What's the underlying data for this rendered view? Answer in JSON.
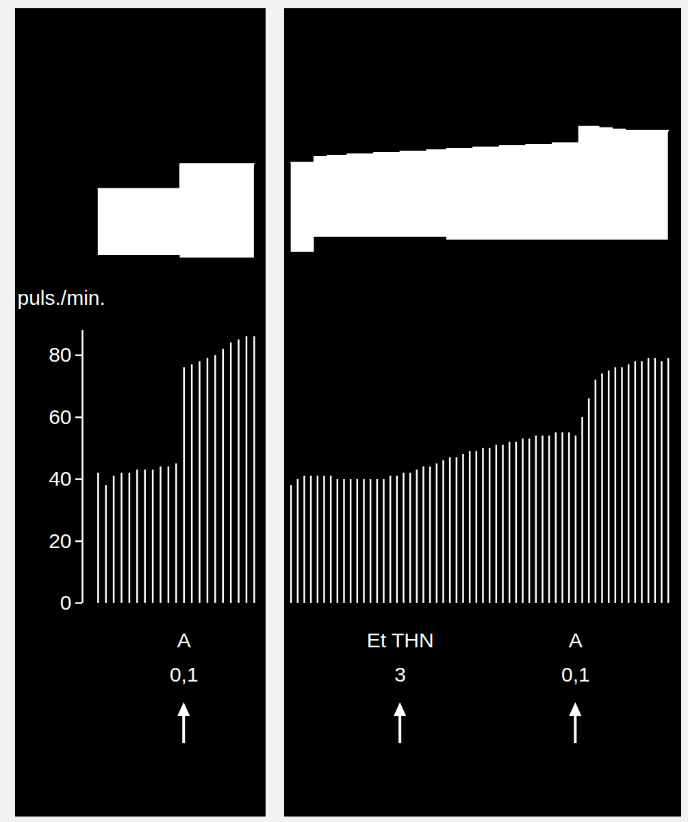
{
  "chart_data": [
    {
      "type": "area",
      "color": "white",
      "tick_labels": false,
      "ylim": [
        0,
        105
      ],
      "x": [
        0,
        1,
        2,
        3,
        4,
        5,
        6,
        7,
        8,
        9,
        10,
        11,
        12,
        13,
        14,
        15,
        16,
        17,
        18,
        19,
        20
      ],
      "upper": [
        53,
        53,
        53,
        53,
        53,
        53,
        53,
        53,
        53,
        53,
        53,
        71,
        71,
        71,
        71,
        71,
        71,
        71,
        71,
        71,
        71
      ],
      "lower": [
        5,
        5,
        5,
        5,
        5,
        5,
        5,
        5,
        5,
        5,
        5,
        3,
        3,
        3,
        3,
        3,
        3,
        3,
        3,
        3,
        3
      ]
    },
    {
      "type": "bar",
      "color": "white",
      "tick_labels": "y",
      "y_label": "puls./min.",
      "ylim": [
        0,
        88
      ],
      "yticks": [
        0,
        20,
        40,
        60,
        80
      ],
      "x": [
        0,
        1,
        2,
        3,
        4,
        5,
        6,
        7,
        8,
        9,
        10,
        11,
        12,
        13,
        14,
        15,
        16,
        17,
        18,
        19,
        20
      ],
      "values": [
        42,
        38,
        41,
        42,
        42,
        43,
        43,
        43,
        44,
        44,
        45,
        76,
        77,
        78,
        79,
        80,
        82,
        84,
        85,
        86,
        86
      ],
      "annotations": [
        {
          "x": 11,
          "text": [
            "A",
            "0,1"
          ]
        }
      ]
    },
    {
      "type": "area",
      "color": "white",
      "tick_labels": false,
      "ylim": [
        0,
        105
      ],
      "x": [
        0,
        1,
        2,
        3,
        4,
        5,
        6,
        7,
        8,
        9,
        10,
        11,
        12,
        13,
        14,
        15,
        16,
        17,
        18,
        19,
        20,
        21,
        22,
        23,
        24,
        25,
        26,
        27,
        28,
        29,
        30,
        31,
        32,
        33,
        34,
        35,
        36,
        37,
        38,
        39,
        40,
        41,
        42,
        43,
        44,
        45,
        46,
        47,
        48,
        49,
        50,
        51,
        52,
        53,
        54,
        55,
        56,
        57
      ],
      "upper": [
        72,
        72,
        72,
        72,
        76,
        76,
        77,
        77,
        77,
        78,
        78,
        78,
        78,
        79,
        79,
        79,
        79,
        80,
        80,
        80,
        80,
        81,
        81,
        81,
        82,
        82,
        82,
        82,
        83,
        83,
        83,
        83,
        84,
        84,
        84,
        84,
        85,
        85,
        85,
        85,
        86,
        86,
        86,
        86,
        98,
        98,
        98,
        97,
        97,
        96,
        96,
        95,
        95,
        95,
        95,
        95,
        95,
        95
      ],
      "lower": [
        7,
        7,
        7,
        7,
        18,
        18,
        18,
        18,
        18,
        18,
        18,
        18,
        18,
        18,
        18,
        18,
        18,
        18,
        18,
        18,
        18,
        18,
        18,
        18,
        16,
        16,
        16,
        16,
        16,
        16,
        16,
        16,
        16,
        16,
        16,
        16,
        16,
        16,
        16,
        16,
        16,
        16,
        16,
        16,
        16,
        16,
        16,
        16,
        16,
        16,
        16,
        16,
        16,
        16,
        16,
        16,
        16,
        16
      ]
    },
    {
      "type": "bar",
      "color": "white",
      "tick_labels": false,
      "ylim": [
        0,
        88
      ],
      "yticks": [
        0,
        20,
        40,
        60,
        80
      ],
      "x": [
        0,
        1,
        2,
        3,
        4,
        5,
        6,
        7,
        8,
        9,
        10,
        11,
        12,
        13,
        14,
        15,
        16,
        17,
        18,
        19,
        20,
        21,
        22,
        23,
        24,
        25,
        26,
        27,
        28,
        29,
        30,
        31,
        32,
        33,
        34,
        35,
        36,
        37,
        38,
        39,
        40,
        41,
        42,
        43,
        44,
        45,
        46,
        47,
        48,
        49,
        50,
        51,
        52,
        53,
        54,
        55,
        56,
        57
      ],
      "values": [
        38,
        40,
        41,
        41,
        41,
        41,
        41,
        40,
        40,
        40,
        40,
        40,
        40,
        40,
        40,
        41,
        41,
        42,
        42,
        43,
        44,
        44,
        45,
        46,
        47,
        47,
        48,
        49,
        49,
        50,
        50,
        51,
        51,
        52,
        52,
        53,
        53,
        54,
        54,
        54,
        55,
        55,
        55,
        54,
        60,
        66,
        72,
        74,
        75,
        76,
        76,
        77,
        78,
        78,
        79,
        79,
        78,
        79
      ],
      "annotations": [
        {
          "x": 16.5,
          "text": [
            "Et THN",
            "3"
          ]
        },
        {
          "x": 43,
          "text": [
            "A",
            "0,1"
          ]
        }
      ]
    }
  ]
}
